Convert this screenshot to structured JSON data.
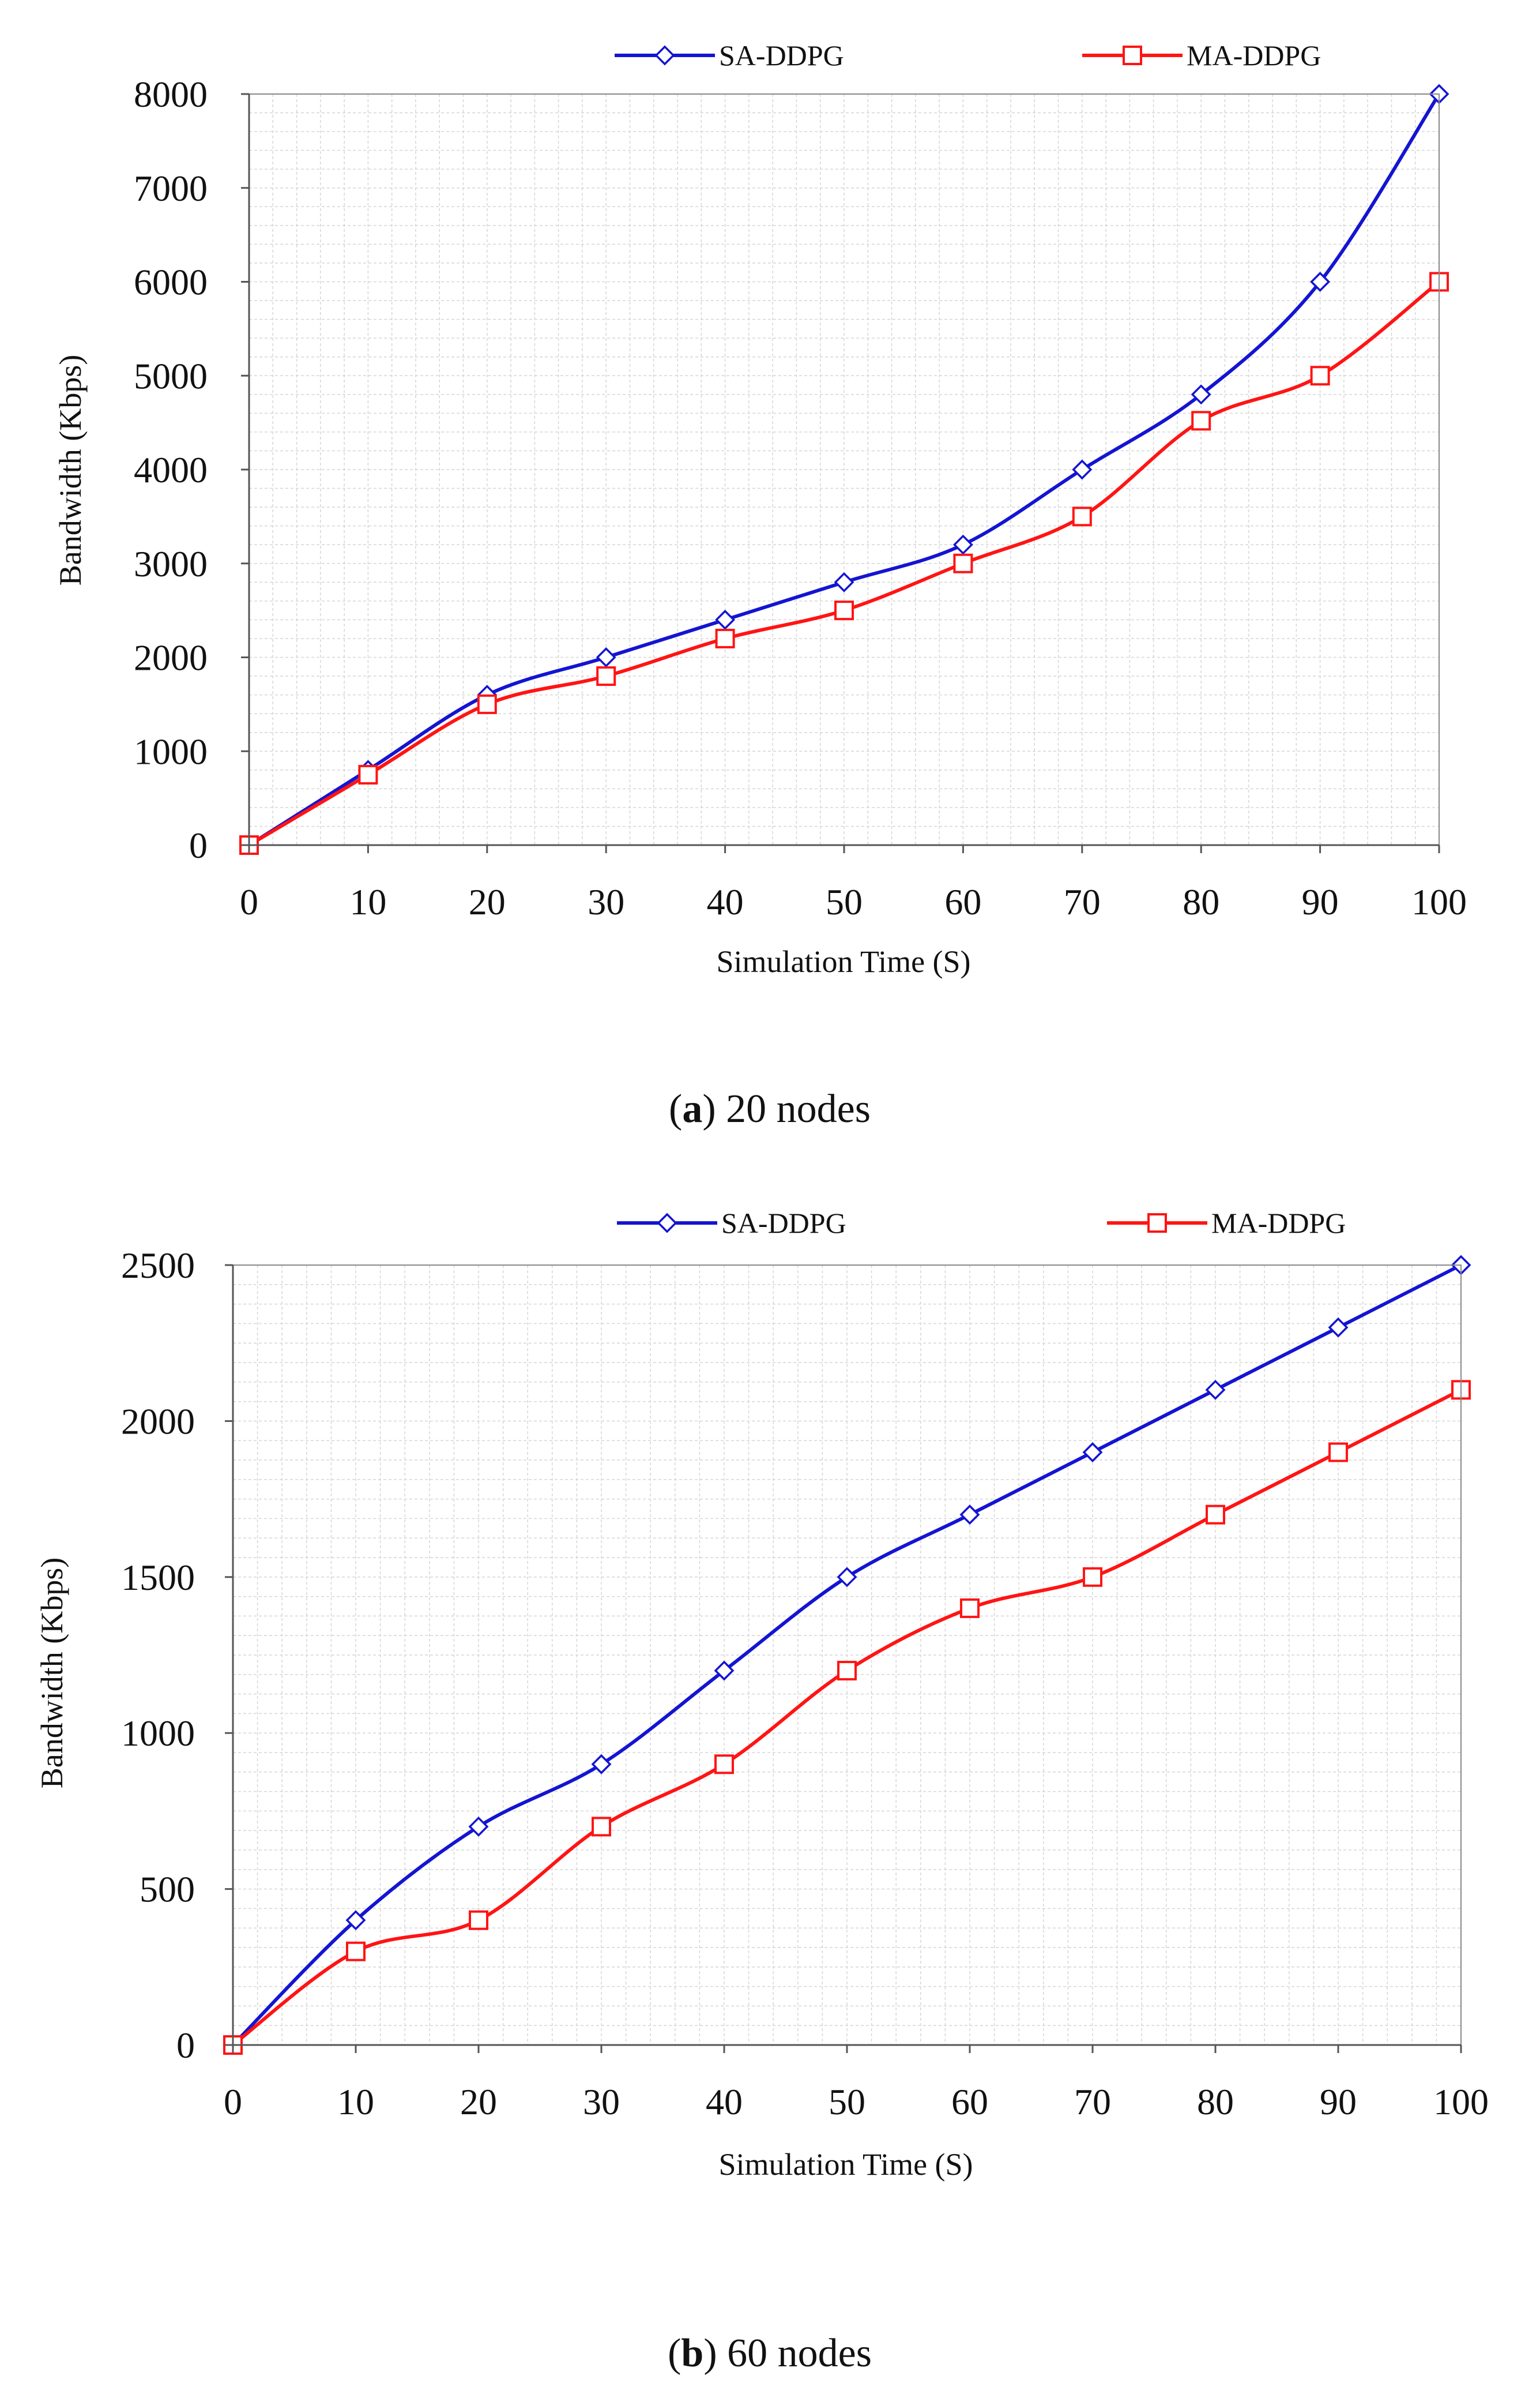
{
  "colors": {
    "sa": "#1414d2",
    "ma": "#ff1414",
    "grid": "#d6d6d6",
    "axis": "#888888"
  },
  "captions": [
    {
      "letter": "a",
      "open": "(",
      "close": ")",
      "text": " 20 nodes"
    },
    {
      "letter": "b",
      "open": "(",
      "close": ")",
      "text": " 60 nodes"
    }
  ],
  "chart_data": [
    {
      "type": "line",
      "xlabel": "Simulation Time (S)",
      "ylabel": "Bandwidth (Kbps)",
      "x": [
        0,
        10,
        20,
        30,
        40,
        50,
        60,
        70,
        80,
        90,
        100
      ],
      "xlim": [
        0,
        100
      ],
      "ylim": [
        0,
        8000
      ],
      "xticks": [
        0,
        10,
        20,
        30,
        40,
        50,
        60,
        70,
        80,
        90,
        100
      ],
      "yticks": [
        0,
        1000,
        2000,
        3000,
        4000,
        5000,
        6000,
        7000,
        8000
      ],
      "grid": true,
      "legend_position": "top",
      "series": [
        {
          "name": "SA-DDPG",
          "marker": "diamond",
          "values": [
            0,
            800,
            1600,
            2000,
            2400,
            2800,
            3200,
            4000,
            4800,
            6000,
            8000
          ]
        },
        {
          "name": "MA-DDPG",
          "marker": "square",
          "values": [
            0,
            750,
            1500,
            1800,
            2200,
            2500,
            3000,
            3500,
            4520,
            5000,
            6000
          ]
        }
      ]
    },
    {
      "type": "line",
      "xlabel": "Simulation Time (S)",
      "ylabel": "Bandwidth (Kbps)",
      "x": [
        0,
        10,
        20,
        30,
        40,
        50,
        60,
        70,
        80,
        90,
        100
      ],
      "xlim": [
        0,
        100
      ],
      "ylim": [
        0,
        2500
      ],
      "xticks": [
        0,
        10,
        20,
        30,
        40,
        50,
        60,
        70,
        80,
        90,
        100
      ],
      "yticks": [
        0,
        500,
        1000,
        1500,
        2000,
        2500
      ],
      "grid": true,
      "legend_position": "top",
      "series": [
        {
          "name": "SA-DDPG",
          "marker": "diamond",
          "values": [
            0,
            400,
            700,
            900,
            1200,
            1500,
            1700,
            1900,
            2100,
            2300,
            2500
          ]
        },
        {
          "name": "MA-DDPG",
          "marker": "square",
          "values": [
            0,
            300,
            400,
            700,
            900,
            1200,
            1400,
            1500,
            1700,
            1900,
            2100
          ]
        }
      ]
    }
  ]
}
